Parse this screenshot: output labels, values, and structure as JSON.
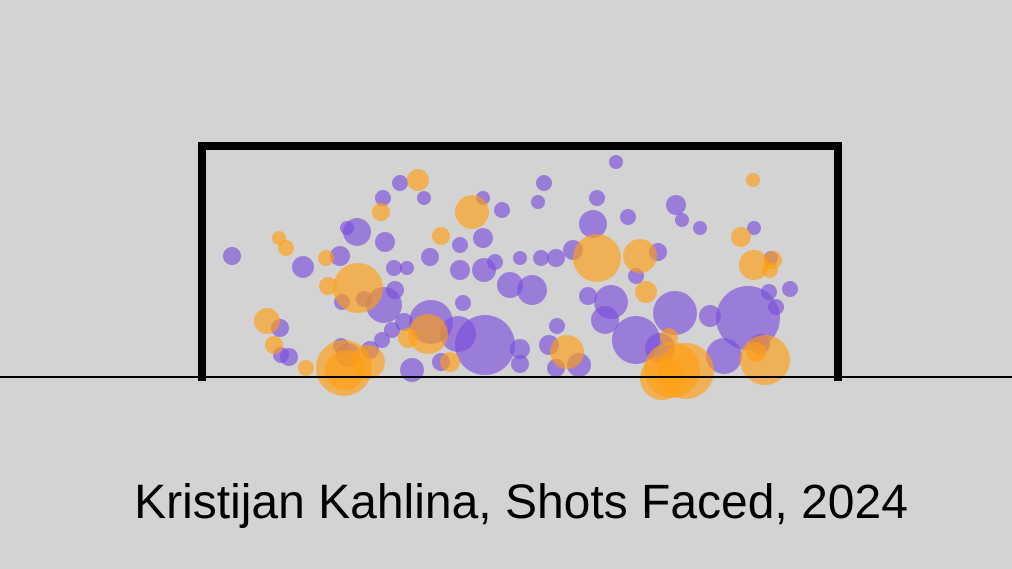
{
  "chart_data": {
    "type": "bubble",
    "title": "Kristijan Kahlina, Shots Faced, 2024",
    "xlim": [
      -20,
      81.2
    ],
    "ylim": [
      -10.4,
      37.8
    ],
    "series": [
      {
        "color": "#7a4fdc",
        "x": [
          3.2,
          10.3,
          15.7,
          18.3,
          20,
          22.4,
          18.5,
          14.7,
          14,
          19.4,
          20.7,
          23,
          26,
          28.3,
          28.3,
          30.2,
          33.8,
          34.4,
          26,
          28.4,
          29.5,
          31,
          33.2,
          32,
          34.1,
          35.6,
          37.3,
          39.7,
          39.3,
          42.8,
          41.6,
          47.6,
          48.2,
          50,
          45.8,
          43.6,
          38.8,
          41.1,
          40.5,
          47.5,
          54.8,
          55.4,
          57.1,
          59,
          57.6,
          56.9,
          23.1,
          25.8,
          28.5,
          32,
          26.3,
          34.9,
          35.7,
          37.9,
          35.6,
          43.6,
          46,
          51,
          52.4,
          56,
          8,
          8.1,
          8.9,
          14.8,
          14.1,
          17,
          18.2,
          19.2,
          20.4,
          21.2,
          24.1,
          32,
          18.4,
          19.5,
          16.4,
          14.2
        ],
        "values": [
          12.2,
          11.1,
          14.6,
          18,
          19.5,
          18,
          13.6,
          15,
          12.2,
          11,
          11,
          12.1,
          13.3,
          14,
          18,
          16.8,
          17.6,
          19.5,
          10.8,
          10.8,
          11.6,
          9.3,
          8.8,
          12,
          12,
          12,
          12.8,
          18,
          15.4,
          16.1,
          21.6,
          17.3,
          15.8,
          15,
          12.6,
          10.2,
          8.2,
          7.6,
          5.8,
          6.5,
          6,
          15,
          12,
          8.9,
          7.1,
          8.6,
          5.6,
          4.4,
          3.3,
          2.9,
          7.5,
          3.3,
          5.2,
          1.3,
          1,
          3.8,
          3,
          6.2,
          2.2,
          3.4,
          5,
          2.3,
          2.1,
          2.3,
          3.2,
          2.8,
          3.8,
          4.8,
          5.6,
          0.8,
          1.6,
          1.4,
          7.3,
          8.8,
          7.9,
          7.6
        ],
        "sizes": [
          0.9,
          1.1,
          1.4,
          0.8,
          0.8,
          0.7,
          1,
          0.7,
          1,
          0.8,
          0.7,
          0.9,
          0.8,
          1,
          0.7,
          0.8,
          0.7,
          0.8,
          1,
          1.2,
          0.8,
          1.3,
          1.5,
          0.7,
          0.8,
          0.9,
          1,
          0.8,
          1.4,
          0.8,
          0.7,
          1,
          0.7,
          0.7,
          0.9,
          0.8,
          0.9,
          1.7,
          1.4,
          2.2,
          3.2,
          0.7,
          0.7,
          0.8,
          0.8,
          0.8,
          2.2,
          1.8,
          3,
          1,
          0.8,
          1,
          0.8,
          1.2,
          0.9,
          2.4,
          1.5,
          1.1,
          1.8,
          1,
          0.9,
          0.8,
          0.9,
          1.2,
          0.8,
          0.9,
          0.8,
          0.8,
          0.9,
          1.2,
          0.9,
          0.9,
          1.8,
          0.9,
          0.8,
          0.8
        ]
      },
      {
        "color": "#ff9e12",
        "x": [
          21.8,
          18.1,
          27.2,
          24.1,
          7.9,
          8.6,
          12.6,
          15.8,
          12.8,
          6.7,
          7.4,
          14.4,
          14.5,
          16.8,
          22.8,
          20.8,
          36.7,
          39.7,
          44,
          44.6,
          46.9,
          47.2,
          48.6,
          46.2,
          54.1,
          55.3,
          55.4,
          57,
          57.3,
          56.5,
          55.6,
          10.6,
          25
        ],
        "values": [
          19.8,
          16.6,
          16.6,
          14.2,
          14,
          13,
          12,
          9,
          9.2,
          5.7,
          3.3,
          1,
          0.8,
          1.6,
          4.4,
          4,
          2.6,
          12,
          12.2,
          8.6,
          4.1,
          0.8,
          0.7,
          0,
          14.1,
          19.8,
          11.3,
          10.8,
          11.8,
          1.8,
          2.6,
          1,
          1.6
        ],
        "sizes": [
          1.1,
          0.9,
          1.7,
          0.9,
          0.7,
          0.8,
          0.8,
          2.5,
          0.9,
          1.3,
          0.9,
          2.8,
          2,
          1.7,
          2,
          1,
          1.7,
          2.4,
          1.7,
          1.1,
          0.9,
          2.8,
          2.8,
          2.2,
          1,
          0.7,
          1.5,
          0.8,
          0.9,
          2.5,
          1,
          0.8,
          1
        ]
      }
    ]
  }
}
